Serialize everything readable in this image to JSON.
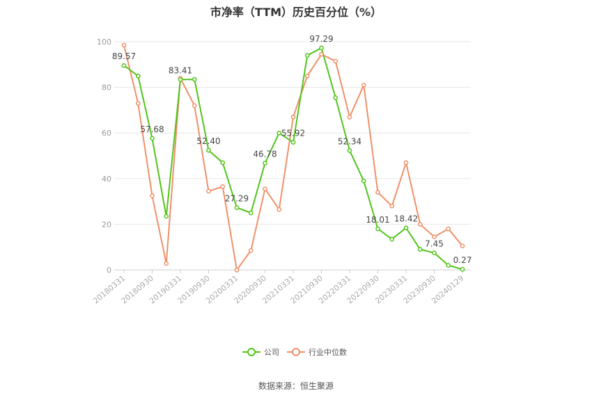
{
  "source": "数据来源：恒生聚源",
  "chart_data": {
    "type": "line",
    "title": "市净率（TTM）历史百分位（%）",
    "xlabel": "",
    "ylabel": "",
    "ylim": [
      0,
      100
    ],
    "yticks": [
      0,
      20,
      40,
      60,
      80,
      100
    ],
    "grid": true,
    "legend_position": "bottom",
    "x": [
      "20180331",
      "20180630",
      "20180930",
      "20181231",
      "20190331",
      "20190630",
      "20190930",
      "20191231",
      "20200331",
      "20200630",
      "20200930",
      "20201231",
      "20210331",
      "20210630",
      "20210930",
      "20211231",
      "20220331",
      "20220630",
      "20220930",
      "20221231",
      "20230331",
      "20230630",
      "20230930",
      "20231231",
      "20240129"
    ],
    "x_tick_labels": [
      "20180331",
      "20180930",
      "20190331",
      "20190930",
      "20200331",
      "20200930",
      "20210331",
      "20210930",
      "20220331",
      "20220930",
      "20230331",
      "20230930",
      "20240129"
    ],
    "series": [
      {
        "name": "公司",
        "color": "#52c41a",
        "values": [
          89.57,
          85.0,
          57.68,
          23.5,
          83.41,
          83.5,
          52.4,
          47.0,
          27.29,
          25.0,
          46.78,
          60.0,
          55.92,
          94.0,
          97.29,
          75.5,
          52.34,
          39.0,
          18.01,
          13.5,
          18.42,
          9.0,
          7.45,
          2.0,
          0.27
        ],
        "labels": {
          "0": "89.57",
          "2": "57.68",
          "4": "83.41",
          "6": "52.40",
          "8": "27.29",
          "10": "46.78",
          "12": "55.92",
          "14": "97.29",
          "16": "52.34",
          "18": "18.01",
          "20": "18.42",
          "22": "7.45",
          "24": "0.27"
        }
      },
      {
        "name": "行业中位数",
        "color": "#f0906a",
        "values": [
          98.5,
          73.0,
          32.5,
          2.8,
          84.0,
          72.0,
          34.5,
          36.5,
          0.0,
          8.5,
          35.5,
          26.5,
          67.0,
          85.0,
          94.5,
          91.5,
          67.0,
          81.0,
          34.0,
          28.0,
          47.0,
          20.0,
          14.5,
          18.0,
          10.5
        ]
      }
    ]
  }
}
